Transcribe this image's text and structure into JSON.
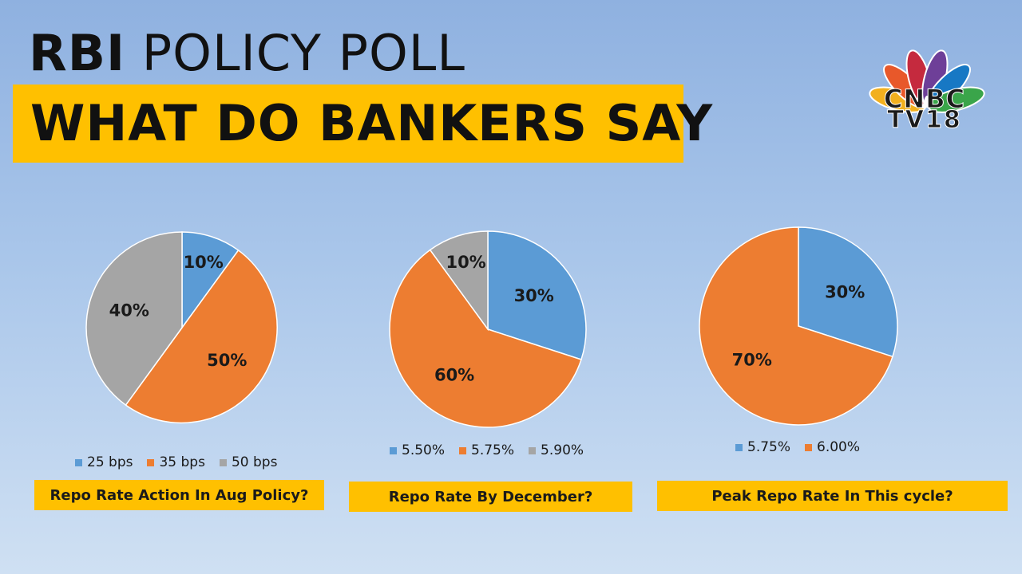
{
  "header": {
    "title_bold": "RBI",
    "title_rest": " POLICY POLL",
    "subtitle": "WHAT DO BANKERS SAY"
  },
  "logo": {
    "wordmark": "CNBC",
    "channel": "TV18",
    "icon": "peacock-icon",
    "feather_colors": [
      "#f2b01e",
      "#e8582a",
      "#c52a3e",
      "#6e3f98",
      "#1778c4",
      "#3aa54a"
    ]
  },
  "colors": {
    "blue": "#5b9bd5",
    "orange": "#ed7d31",
    "gray": "#a5a5a5",
    "accent": "#ffc000"
  },
  "chart_data": [
    {
      "type": "pie",
      "title": "Repo Rate Action In Aug Policy?",
      "categories": [
        "25 bps",
        "35 bps",
        "50 bps"
      ],
      "values": [
        10,
        50,
        40
      ],
      "labels": [
        "10%",
        "50%",
        "40%"
      ],
      "colors": [
        "#5b9bd5",
        "#ed7d31",
        "#a5a5a5"
      ],
      "legend": "bottom"
    },
    {
      "type": "pie",
      "title": "Repo Rate By December?",
      "categories": [
        "5.50%",
        "5.75%",
        "5.90%"
      ],
      "values": [
        30,
        60,
        10
      ],
      "labels": [
        "30%",
        "60%",
        "10%"
      ],
      "colors": [
        "#5b9bd5",
        "#ed7d31",
        "#a5a5a5"
      ],
      "legend": "bottom"
    },
    {
      "type": "pie",
      "title": "Peak Repo Rate In This cycle?",
      "categories": [
        "5.75%",
        "6.00%"
      ],
      "values": [
        30,
        70
      ],
      "labels": [
        "30%",
        "70%"
      ],
      "colors": [
        "#5b9bd5",
        "#ed7d31"
      ],
      "legend": "bottom"
    }
  ]
}
